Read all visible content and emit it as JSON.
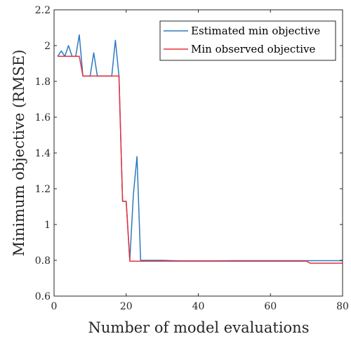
{
  "chart_data": {
    "type": "line",
    "title": "",
    "xlabel": "Number of model evaluations",
    "ylabel": "Minimum objective (RMSE)",
    "xlim": [
      0,
      80
    ],
    "ylim": [
      0.6,
      2.2
    ],
    "x_ticks": [
      0,
      20,
      40,
      60,
      80
    ],
    "y_ticks": [
      0.6,
      0.8,
      1,
      1.2,
      1.4,
      1.6,
      1.8,
      2,
      2.2
    ],
    "x_tick_labels": [
      "0",
      "20",
      "40",
      "60",
      "80"
    ],
    "y_tick_labels": [
      "0.6",
      "0.8",
      "1",
      "1.2",
      "1.4",
      "1.6",
      "1.8",
      "2",
      "2.2"
    ],
    "grid": false,
    "legend_position": "top-right",
    "series": [
      {
        "name": "Estimated min objective",
        "color": "#2c7bbf",
        "points": [
          [
            1,
            1.94
          ],
          [
            2,
            1.97
          ],
          [
            3,
            1.94
          ],
          [
            4,
            2.0
          ],
          [
            5,
            1.94
          ],
          [
            6,
            1.94
          ],
          [
            7,
            2.06
          ],
          [
            8,
            1.83
          ],
          [
            9,
            1.83
          ],
          [
            10,
            1.83
          ],
          [
            11,
            1.96
          ],
          [
            12,
            1.83
          ],
          [
            13,
            1.83
          ],
          [
            14,
            1.83
          ],
          [
            15,
            1.83
          ],
          [
            16,
            1.83
          ],
          [
            17,
            2.03
          ],
          [
            18,
            1.83
          ],
          [
            19,
            1.13
          ],
          [
            20,
            1.13
          ],
          [
            21,
            0.8
          ],
          [
            22,
            1.17
          ],
          [
            23,
            1.38
          ],
          [
            24,
            0.8
          ],
          [
            25,
            0.8
          ],
          [
            30,
            0.8
          ],
          [
            35,
            0.797
          ],
          [
            40,
            0.797
          ],
          [
            45,
            0.797
          ],
          [
            50,
            0.798
          ],
          [
            55,
            0.798
          ],
          [
            60,
            0.798
          ],
          [
            65,
            0.798
          ],
          [
            70,
            0.798
          ],
          [
            75,
            0.798
          ],
          [
            80,
            0.798
          ]
        ]
      },
      {
        "name": "Min observed objective",
        "color": "#e8323c",
        "points": [
          [
            1,
            1.94
          ],
          [
            2,
            1.94
          ],
          [
            3,
            1.94
          ],
          [
            4,
            1.94
          ],
          [
            5,
            1.94
          ],
          [
            6,
            1.94
          ],
          [
            7,
            1.94
          ],
          [
            8,
            1.83
          ],
          [
            9,
            1.83
          ],
          [
            10,
            1.83
          ],
          [
            11,
            1.83
          ],
          [
            12,
            1.83
          ],
          [
            13,
            1.83
          ],
          [
            14,
            1.83
          ],
          [
            15,
            1.83
          ],
          [
            16,
            1.83
          ],
          [
            17,
            1.83
          ],
          [
            18,
            1.83
          ],
          [
            19,
            1.13
          ],
          [
            20,
            1.13
          ],
          [
            21,
            0.795
          ],
          [
            25,
            0.795
          ],
          [
            30,
            0.795
          ],
          [
            35,
            0.795
          ],
          [
            40,
            0.795
          ],
          [
            45,
            0.795
          ],
          [
            50,
            0.795
          ],
          [
            55,
            0.795
          ],
          [
            60,
            0.795
          ],
          [
            65,
            0.795
          ],
          [
            70,
            0.795
          ],
          [
            71,
            0.784
          ],
          [
            75,
            0.784
          ],
          [
            80,
            0.784
          ]
        ]
      }
    ]
  }
}
